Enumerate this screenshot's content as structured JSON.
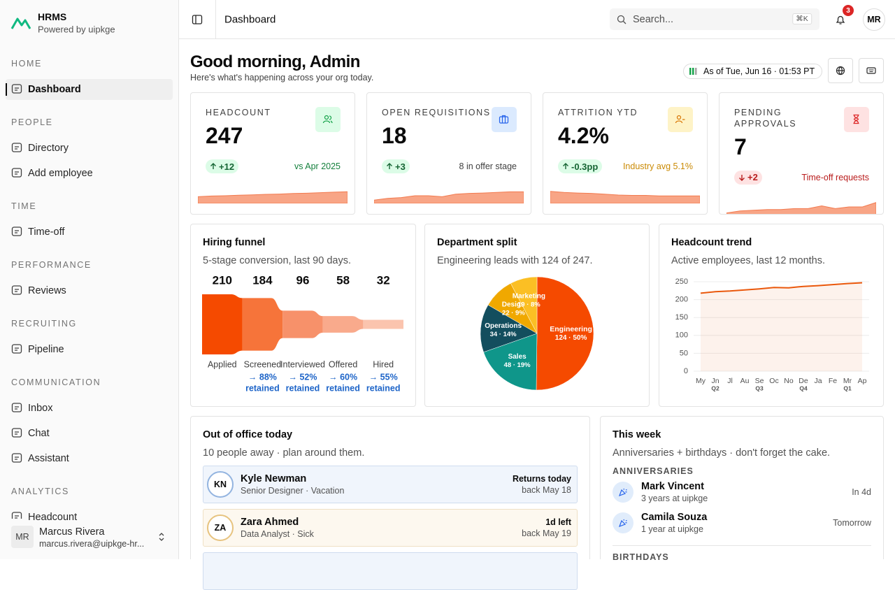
{
  "sidebar": {
    "brand": "HRMS",
    "tagline": "Powered by uipkge",
    "sections": [
      {
        "title": "HOME",
        "items": [
          "Dashboard"
        ]
      },
      {
        "title": "PEOPLE",
        "items": [
          "Directory",
          "Add employee"
        ]
      },
      {
        "title": "TIME",
        "items": [
          "Time-off"
        ]
      },
      {
        "title": "PERFORMANCE",
        "items": [
          "Reviews"
        ]
      },
      {
        "title": "RECRUITING",
        "items": [
          "Pipeline"
        ]
      },
      {
        "title": "COMMUNICATION",
        "items": [
          "Inbox",
          "Chat",
          "Assistant"
        ]
      },
      {
        "title": "ANALYTICS",
        "items": [
          "Headcount"
        ]
      }
    ],
    "user": {
      "initials": "MR",
      "name": "Marcus Rivera",
      "email": "marcus.rivera@uipkge-hr..."
    }
  },
  "topbar": {
    "page": "Dashboard",
    "search": "Search...",
    "shortcut": "⌘K",
    "notifications": 3,
    "avatar": "MR"
  },
  "header": {
    "greeting": "Good morning, Admin",
    "subtitle": "Here's what's happening across your org today.",
    "as_of": "As of Tue, Jun 16 · 01:53 PT"
  },
  "kpis": [
    {
      "label": "HEADCOUNT",
      "value": 247,
      "delta": "+12",
      "note": "vs Apr 2025",
      "spark": [
        40,
        44,
        46,
        49,
        51,
        54,
        56,
        59,
        61,
        64,
        67,
        70
      ],
      "spark_lim": [
        0,
        100
      ]
    },
    {
      "label": "OPEN REQUISITIONS",
      "value": 18,
      "delta": "+3",
      "note": "8 in offer stage",
      "spark": [
        20,
        30,
        35,
        46,
        46,
        40,
        55,
        60,
        62,
        66,
        69,
        69
      ],
      "spark_lim": [
        0,
        100
      ]
    },
    {
      "label": "ATTRITION YTD",
      "value": "4.2%",
      "delta": "-0.3pp",
      "note": "Industry avg 5.1%",
      "spark": [
        72,
        66,
        62,
        60,
        55,
        50,
        48,
        48,
        45,
        45,
        45,
        45
      ],
      "spark_lim": [
        0,
        100
      ]
    },
    {
      "label": "PENDING APPROVALS",
      "value": 7,
      "delta": "+2",
      "note": "Time-off requests",
      "spark": [
        10,
        22,
        26,
        30,
        30,
        36,
        36,
        52,
        36,
        46,
        46,
        72
      ],
      "spark_lim": [
        0,
        100
      ]
    }
  ],
  "funnel": {
    "type": "funnel",
    "title": "Hiring funnel",
    "subtitle": "5-stage conversion, last 90 days.",
    "categories": [
      "Applied",
      "Screened",
      "Interviewed",
      "Offered",
      "Hired"
    ],
    "values": [
      210,
      184,
      96,
      58,
      32
    ],
    "colors": [
      "#f54a00",
      "#f6743a",
      "#f7916a",
      "#f9aa8c",
      "#fbc4ae"
    ],
    "retention": [
      null,
      {
        "label": "→ 88%",
        "note": "retained"
      },
      {
        "label": "→ 52%",
        "note": "retained"
      },
      {
        "label": "→ 60%",
        "note": "retained"
      },
      {
        "label": "→ 55%",
        "note": "retained"
      }
    ]
  },
  "department_split": {
    "type": "pie",
    "title": "Department split",
    "subtitle": "Engineering leads with 124 of 247.",
    "categories": [
      "Engineering",
      "Sales",
      "Operations",
      "Design",
      "Marketing"
    ],
    "values": [
      124,
      48,
      34,
      22,
      19
    ],
    "value_labels": [
      "124 · 50%",
      "48 · 19%",
      "34 · 14%",
      "22 · 9%",
      "19 · 8%"
    ],
    "colors": [
      "#f54a00",
      "#0f968a",
      "#134e5e",
      "#f0a800",
      "#fbbf24"
    ]
  },
  "headcount_trend": {
    "type": "line",
    "title": "Headcount trend",
    "subtitle": "Active employees, last 12 months.",
    "categories": [
      "My",
      "Jn",
      "Jl",
      "Au",
      "Se",
      "Oc",
      "No",
      "De",
      "Ja",
      "Fe",
      "Mr",
      "Ap"
    ],
    "quarters": [
      null,
      "Q2",
      null,
      null,
      "Q3",
      null,
      null,
      "Q4",
      null,
      null,
      "Q1",
      null
    ],
    "values": [
      218,
      222,
      224,
      227,
      230,
      234,
      233,
      237,
      239,
      242,
      245,
      247
    ],
    "color": "#ea580c",
    "area": true,
    "ylim": [
      0,
      250
    ],
    "yticks": [
      0,
      50,
      100,
      150,
      200,
      250
    ],
    "grid": true
  },
  "out_of_office": {
    "title": "Out of office today",
    "subtitle": "10 people away · plan around them.",
    "people": [
      {
        "initials": "KN",
        "name": "Kyle Newman",
        "detail": "Senior Designer · Vacation",
        "status": "Returns today",
        "back": "back May 18"
      },
      {
        "initials": "ZA",
        "name": "Zara Ahmed",
        "detail": "Data Analyst · Sick",
        "status": "1d left",
        "back": "back May 19"
      }
    ]
  },
  "this_week": {
    "title": "This week",
    "subtitle": "Anniversaries + birthdays · don't forget the cake.",
    "anniversaries_heading": "ANNIVERSARIES",
    "anniversaries": [
      {
        "name": "Mark Vincent",
        "detail": "3 years at uipkge",
        "when": "In 4d"
      },
      {
        "name": "Camila Souza",
        "detail": "1 year at uipkge",
        "when": "Tomorrow"
      }
    ],
    "birthdays_heading": "BIRTHDAYS"
  }
}
